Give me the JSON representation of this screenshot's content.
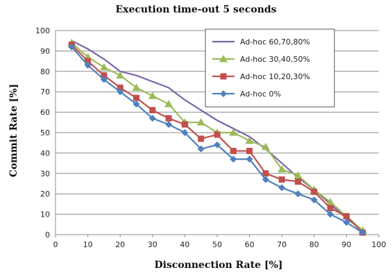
{
  "chart_data": {
    "type": "line",
    "title": "Execution time-out 5 seconds",
    "xlabel": "Disconnection Rate [%]",
    "ylabel": "Commit Rate [%]",
    "xlim": [
      0,
      100
    ],
    "ylim": [
      0,
      100
    ],
    "xticks": [
      0,
      10,
      20,
      30,
      40,
      50,
      60,
      70,
      80,
      90,
      100
    ],
    "yticks": [
      0,
      10,
      20,
      30,
      40,
      50,
      60,
      70,
      80,
      90,
      100
    ],
    "grid": "horizontal",
    "legend_position": "top-right",
    "x": [
      5,
      10,
      15,
      20,
      25,
      30,
      35,
      40,
      45,
      50,
      55,
      60,
      65,
      70,
      75,
      80,
      85,
      90,
      95
    ],
    "series": [
      {
        "name": "Ad-hoc 60,70,80%",
        "color": "#7b64a8",
        "marker": "none",
        "values": [
          95,
          91,
          86,
          80,
          78,
          75,
          72,
          66,
          61,
          56,
          52,
          48,
          42,
          35,
          28,
          22,
          15,
          8,
          2
        ]
      },
      {
        "name": "Ad-hoc 30,40,50%",
        "color": "#9bbb59",
        "marker": "triangle",
        "values": [
          94,
          87,
          82,
          78,
          72,
          68,
          64,
          55,
          55,
          50,
          50,
          46,
          43,
          32,
          29,
          22,
          16,
          9,
          2
        ]
      },
      {
        "name": "Ad-hoc 10,20,30%",
        "color": "#c0504d",
        "marker": "square",
        "values": [
          93,
          85,
          78,
          72,
          67,
          61,
          57,
          54,
          47,
          49,
          41,
          41,
          30,
          27,
          26,
          21,
          13,
          9,
          1
        ]
      },
      {
        "name": "Ad-hoc 0%",
        "color": "#4f81bd",
        "marker": "diamond",
        "values": [
          92,
          83,
          76,
          70,
          64,
          57,
          54,
          50,
          42,
          44,
          37,
          37,
          27,
          23,
          20,
          17,
          10,
          6,
          1
        ]
      }
    ]
  }
}
